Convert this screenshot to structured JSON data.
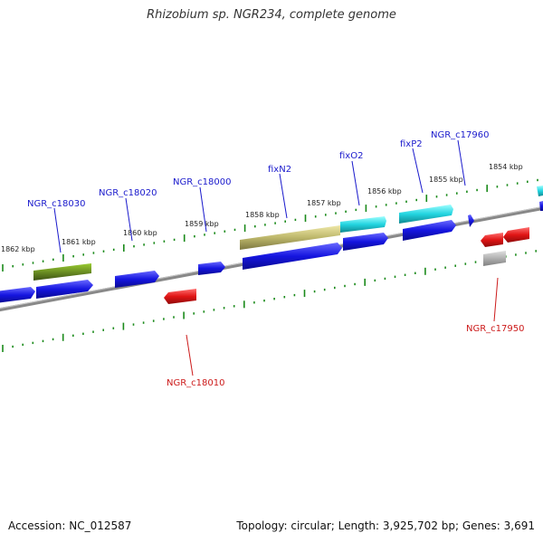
{
  "title": "Rhizobium sp. NGR234, complete genome",
  "footer": {
    "accession": "Accession: NC_012587",
    "summary": "Topology: circular; Length: 3,925,702 bp; Genes: 3,691"
  },
  "colors": {
    "forward_gene": "#1515e0",
    "reverse_gene": "#e01515",
    "pseudo_gene": "#b0b0b0",
    "nif_fix_gene": "#22d4e0",
    "olive_gene": "#6b8e23",
    "khaki_gene": "#bdb76b",
    "tick": "#1a8a1a",
    "backbone": "#888888",
    "forward_label": "#1a1acc",
    "reverse_label": "#cc1a1a"
  },
  "kbp_labels": [
    "1862 kbp",
    "1861 kbp",
    "1860 kbp",
    "1859 kbp",
    "1858 kbp",
    "1857 kbp",
    "1856 kbp",
    "1855 kbp",
    "1854 kbp"
  ],
  "gene_labels": [
    {
      "text": "NGR_c18030",
      "strand": "forward"
    },
    {
      "text": "NGR_c18020",
      "strand": "forward"
    },
    {
      "text": "NGR_c18000",
      "strand": "forward"
    },
    {
      "text": "fixN2",
      "strand": "forward"
    },
    {
      "text": "fixO2",
      "strand": "forward"
    },
    {
      "text": "fixP2",
      "strand": "forward"
    },
    {
      "text": "NGR_c17960",
      "strand": "forward"
    },
    {
      "text": "NGR_c18010",
      "strand": "reverse"
    },
    {
      "text": "NGR_c17950",
      "strand": "reverse"
    }
  ]
}
